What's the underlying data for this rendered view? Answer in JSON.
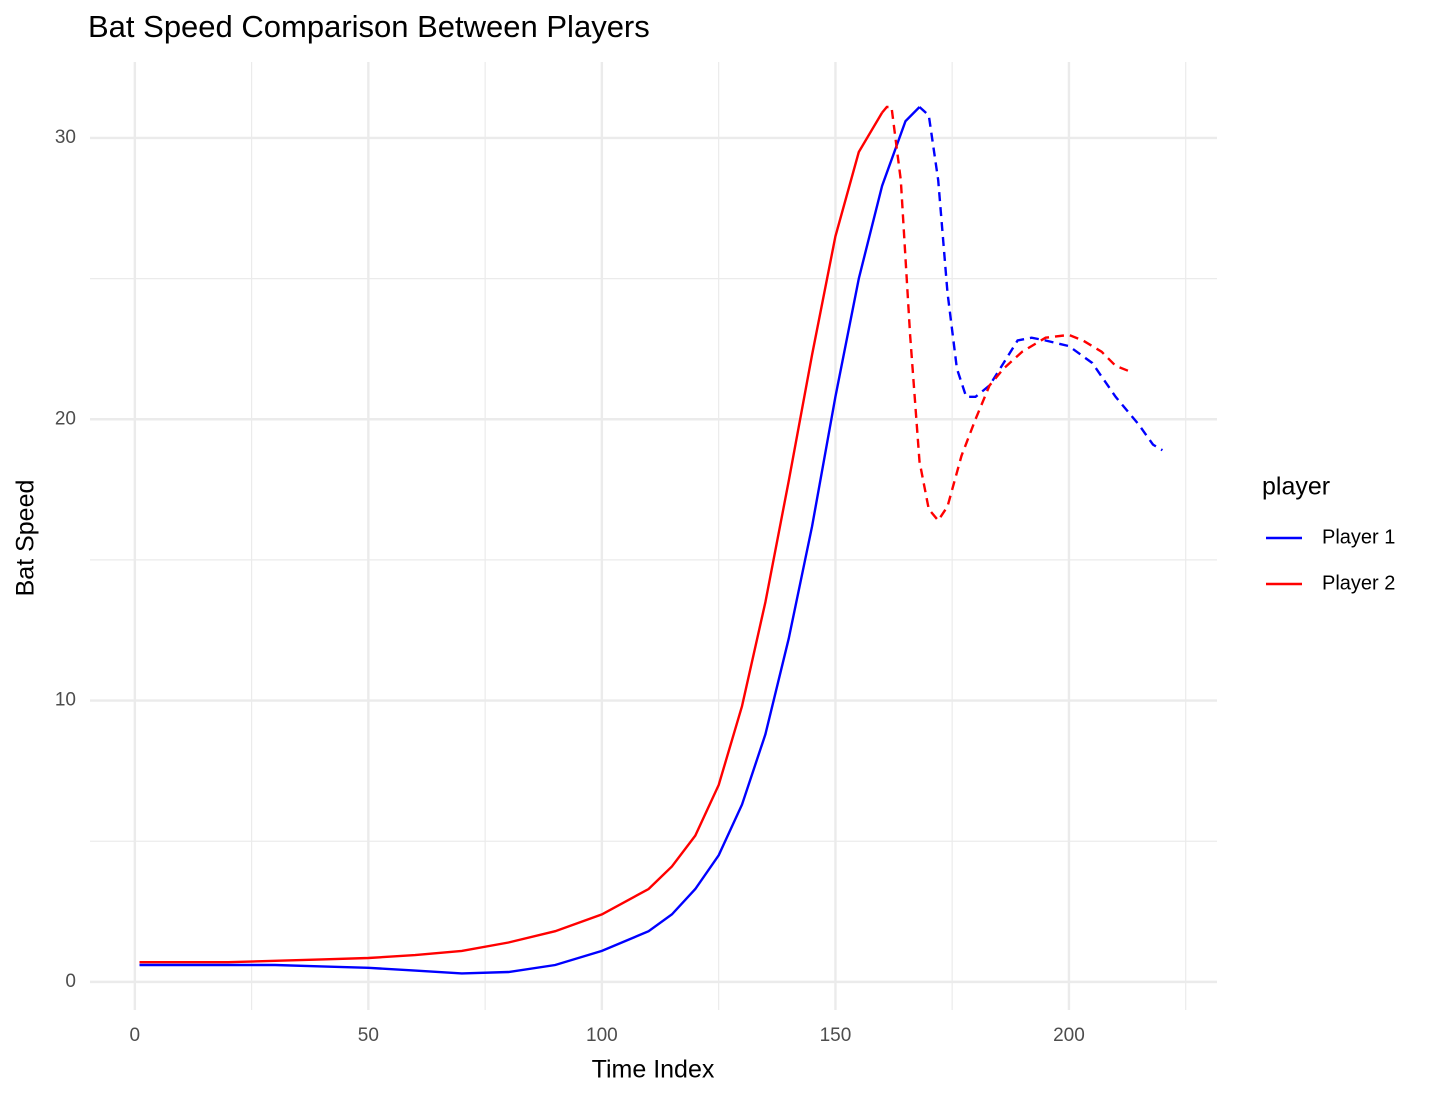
{
  "chart_data": {
    "type": "line",
    "title": "Bat Speed Comparison Between Players",
    "xlabel": "Time Index",
    "ylabel": "Bat Speed",
    "legend_title": "player",
    "legend_position": "right",
    "xlim": [
      -9.6,
      231.7
    ],
    "ylim": [
      -1.0,
      32.7
    ],
    "xticks": [
      0,
      50,
      100,
      150,
      200
    ],
    "yticks": [
      0,
      10,
      20,
      30
    ],
    "xminor": [
      25,
      75,
      125,
      175,
      225
    ],
    "yminor": [
      5,
      15,
      25
    ],
    "grid": true,
    "series": [
      {
        "name": "Player 1",
        "color": "#0000ff",
        "segments": [
          {
            "linetype": "solid",
            "x": [
              1,
              10,
              20,
              30,
              40,
              50,
              60,
              70,
              80,
              90,
              100,
              110,
              115,
              120,
              125,
              130,
              135,
              140,
              145,
              150,
              155,
              160,
              165,
              168
            ],
            "values": [
              0.6,
              0.6,
              0.6,
              0.6,
              0.55,
              0.5,
              0.4,
              0.3,
              0.35,
              0.6,
              1.1,
              1.8,
              2.4,
              3.3,
              4.5,
              6.3,
              8.8,
              12.2,
              16.2,
              20.8,
              25.0,
              28.3,
              30.6,
              31.1
            ]
          },
          {
            "linetype": "dashed",
            "x": [
              168,
              170,
              172,
              174,
              176,
              178,
              180,
              183,
              186,
              189,
              192,
              195,
              200,
              205,
              210,
              215,
              218,
              220
            ],
            "values": [
              31.1,
              30.8,
              28.5,
              24.5,
              21.8,
              20.8,
              20.8,
              21.2,
              22.0,
              22.8,
              22.9,
              22.8,
              22.6,
              22.0,
              20.8,
              19.8,
              19.1,
              18.9
            ]
          }
        ]
      },
      {
        "name": "Player 2",
        "color": "#ff0000",
        "segments": [
          {
            "linetype": "solid",
            "x": [
              1,
              10,
              20,
              30,
              40,
              50,
              60,
              70,
              80,
              90,
              100,
              110,
              115,
              120,
              125,
              130,
              135,
              140,
              145,
              150,
              155,
              160
            ],
            "values": [
              0.7,
              0.7,
              0.7,
              0.75,
              0.8,
              0.85,
              0.95,
              1.1,
              1.4,
              1.8,
              2.4,
              3.3,
              4.1,
              5.2,
              7.0,
              9.8,
              13.5,
              17.8,
              22.3,
              26.5,
              29.5,
              30.9
            ]
          },
          {
            "linetype": "dashed",
            "x": [
              160,
              161,
              162,
              164,
              166,
              168,
              170,
              172,
              174,
              177,
              180,
              183,
              186,
              190,
              195,
              200,
              203,
              207,
              210,
              213
            ],
            "values": [
              30.9,
              31.1,
              31.1,
              28.5,
              23.0,
              18.5,
              16.8,
              16.4,
              16.9,
              18.7,
              20.0,
              21.2,
              21.8,
              22.4,
              22.9,
              23.0,
              22.8,
              22.4,
              21.9,
              21.7
            ]
          }
        ]
      }
    ]
  }
}
